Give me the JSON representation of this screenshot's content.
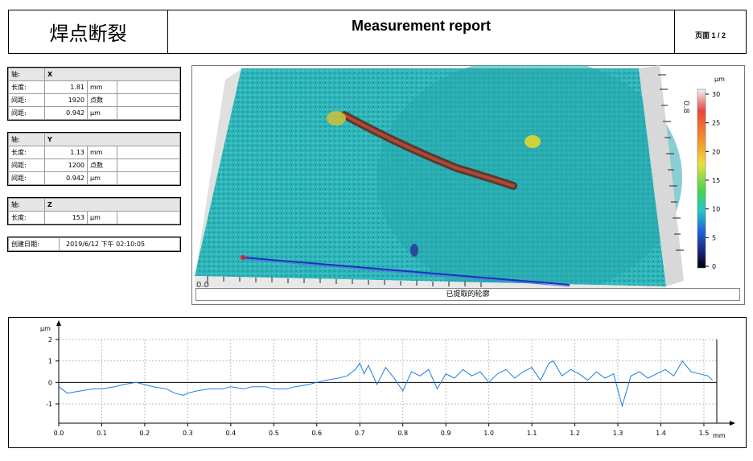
{
  "header": {
    "title_cn": "焊点断裂",
    "report_title": "Measurement report",
    "page_label": "页面 1 / 2"
  },
  "axis_x": {
    "rows": [
      {
        "label": "轴:",
        "value": "X",
        "unit": ""
      },
      {
        "label": "长度:",
        "value": "1.81",
        "unit": "mm"
      },
      {
        "label": "间距:",
        "value": "1920",
        "unit": "点数"
      },
      {
        "label": "间距:",
        "value": "0.942",
        "unit": "µm"
      }
    ]
  },
  "axis_y": {
    "rows": [
      {
        "label": "轴:",
        "value": "Y",
        "unit": ""
      },
      {
        "label": "长度:",
        "value": "1.13",
        "unit": "mm"
      },
      {
        "label": "间距:",
        "value": "1200",
        "unit": "点数"
      },
      {
        "label": "间距:",
        "value": "0.942",
        "unit": "µm"
      }
    ]
  },
  "axis_z": {
    "rows": [
      {
        "label": "轴:",
        "value": "Z",
        "unit": ""
      },
      {
        "label": "长度:",
        "value": "153",
        "unit": "µm"
      }
    ]
  },
  "created": {
    "label": "创建日期:",
    "value": "2019/6/12 下午 02:10:05"
  },
  "surface_view": {
    "caption": "已提取的轮廓",
    "colorbar_unit": "µm",
    "colorbar_ticks": [
      "30",
      "25",
      "20",
      "15",
      "10",
      "5",
      "0"
    ],
    "colorbar_colors": [
      "#f2f2f2",
      "#e8463a",
      "#f59a2b",
      "#e9e13b",
      "#4fd34c",
      "#22c7c7",
      "#1f5fd6",
      "#1a1f6e",
      "#000000"
    ],
    "axis_labels": [
      "0.0",
      "0.8",
      "0.5",
      "0.3"
    ]
  },
  "chart_data": {
    "type": "line",
    "ylabel": "µm",
    "xlabel": "mm",
    "xlim": [
      0,
      1.53
    ],
    "ylim": [
      -1.9,
      2
    ],
    "xticks": [
      "0.0",
      "0.1",
      "0.2",
      "0.3",
      "0.4",
      "0.5",
      "0.6",
      "0.7",
      "0.8",
      "0.9",
      "1.0",
      "1.1",
      "1.2",
      "1.3",
      "1.4",
      "1.5"
    ],
    "yticks": [
      "2",
      "1",
      "0",
      "-1"
    ],
    "grid": true,
    "line_color": "#1e7fe0",
    "series": [
      {
        "x": [
          0.0,
          0.02,
          0.05,
          0.08,
          0.1,
          0.13,
          0.15,
          0.18,
          0.2,
          0.22,
          0.25,
          0.27,
          0.29,
          0.3,
          0.32,
          0.35,
          0.38,
          0.4,
          0.43,
          0.45,
          0.48,
          0.5,
          0.53,
          0.55,
          0.58,
          0.6,
          0.62,
          0.65,
          0.67,
          0.69,
          0.7,
          0.71,
          0.72,
          0.74,
          0.76,
          0.78,
          0.8,
          0.82,
          0.84,
          0.86,
          0.88,
          0.9,
          0.92,
          0.94,
          0.96,
          0.98,
          1.0,
          1.02,
          1.04,
          1.06,
          1.08,
          1.1,
          1.12,
          1.14,
          1.15,
          1.17,
          1.19,
          1.21,
          1.23,
          1.25,
          1.27,
          1.29,
          1.31,
          1.33,
          1.35,
          1.37,
          1.39,
          1.41,
          1.43,
          1.45,
          1.47,
          1.49,
          1.51,
          1.52
        ],
        "y": [
          -0.2,
          -0.5,
          -0.4,
          -0.3,
          -0.3,
          -0.2,
          -0.1,
          0.0,
          -0.1,
          -0.2,
          -0.3,
          -0.5,
          -0.6,
          -0.5,
          -0.4,
          -0.3,
          -0.3,
          -0.2,
          -0.3,
          -0.2,
          -0.2,
          -0.3,
          -0.3,
          -0.2,
          -0.1,
          0.0,
          0.1,
          0.2,
          0.3,
          0.6,
          0.9,
          0.4,
          0.8,
          -0.1,
          0.7,
          0.2,
          -0.4,
          0.5,
          0.3,
          0.6,
          -0.3,
          0.4,
          0.2,
          0.6,
          0.3,
          0.5,
          0.0,
          0.4,
          0.6,
          0.2,
          0.5,
          0.7,
          0.1,
          0.9,
          1.0,
          0.3,
          0.6,
          0.4,
          0.1,
          0.5,
          0.2,
          0.4,
          -1.1,
          0.3,
          0.5,
          0.2,
          0.4,
          0.6,
          0.3,
          1.0,
          0.5,
          0.4,
          0.3,
          0.1
        ]
      }
    ]
  }
}
